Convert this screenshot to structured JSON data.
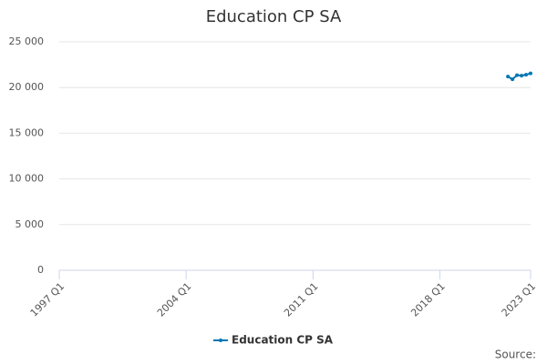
{
  "chart_data": {
    "type": "line",
    "title": "Education CP SA",
    "x": [
      2021.75,
      2022,
      2022.25,
      2022.5,
      2022.75,
      2023
    ],
    "series": [
      {
        "name": "Education CP SA",
        "color": "#0077b3",
        "values": [
          21200,
          20900,
          21350,
          21300,
          21400,
          21550
        ]
      }
    ],
    "xlim": [
      1997,
      2023
    ],
    "xticks": [
      {
        "value": 1997,
        "label": "1997 Q1"
      },
      {
        "value": 2004,
        "label": "2004 Q1"
      },
      {
        "value": 2011,
        "label": "2011 Q1"
      },
      {
        "value": 2018,
        "label": "2018 Q1"
      },
      {
        "value": 2023,
        "label": "2023 Q1"
      }
    ],
    "ylim": [
      0,
      25000
    ],
    "yticks": [
      0,
      {
        "value": 5000,
        "label": "5 000"
      },
      {
        "value": 10000,
        "label": "10 000"
      },
      {
        "value": 15000,
        "label": "15 000"
      },
      {
        "value": 20000,
        "label": "20 000"
      },
      {
        "value": 25000,
        "label": "25 000"
      }
    ],
    "grid": true,
    "legend": "bottom",
    "source": "Source:"
  }
}
